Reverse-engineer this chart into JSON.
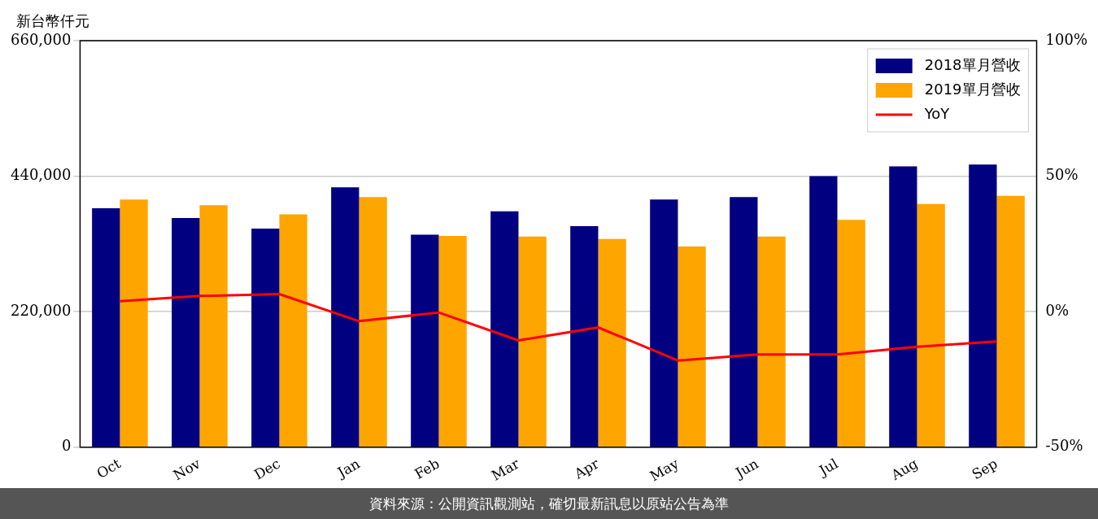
{
  "chart_data": {
    "type": "bar",
    "ylabel": "新台幣仟元",
    "categories": [
      "Oct",
      "Nov",
      "Dec",
      "Jan",
      "Feb",
      "Mar",
      "Apr",
      "May",
      "Jun",
      "Jul",
      "Aug",
      "Sep"
    ],
    "series": [
      {
        "name": "2018單月營收",
        "color": "#000080",
        "values": [
          388000,
          372000,
          355000,
          422000,
          345000,
          383000,
          359000,
          402000,
          406000,
          440000,
          456000,
          459000
        ]
      },
      {
        "name": "2019單月營收",
        "color": "#ffa500",
        "values": [
          402000,
          393000,
          378000,
          406000,
          343000,
          342000,
          338000,
          326000,
          342000,
          369000,
          395000,
          408000
        ]
      },
      {
        "name": "YoY",
        "type": "line",
        "axis": "y2",
        "color": "#ff0000",
        "marker": "none",
        "values": [
          3.9,
          5.8,
          6.5,
          -3.5,
          -0.3,
          -10.6,
          -5.8,
          -18,
          -15.8,
          -15.8,
          -12.9,
          -11
        ]
      }
    ],
    "ylim": [
      0,
      660000
    ],
    "yticks": [
      0,
      {
        "value": 220000,
        "label": "220,000"
      },
      {
        "value": 440000,
        "label": "440,000"
      },
      {
        "value": 660000,
        "label": "660,000"
      }
    ],
    "y2lim": [
      -50,
      100
    ],
    "y2ticks": [
      {
        "value": -50,
        "label": "-50%"
      },
      {
        "value": 0,
        "label": "0%"
      },
      {
        "value": 50,
        "label": "50%"
      },
      {
        "value": 100,
        "label": "100%"
      }
    ],
    "grid": "y",
    "legend": "top right",
    "annotations": [
      "資料來源：公開資訊觀測站，確切最新訊息以原站公告為準"
    ]
  }
}
